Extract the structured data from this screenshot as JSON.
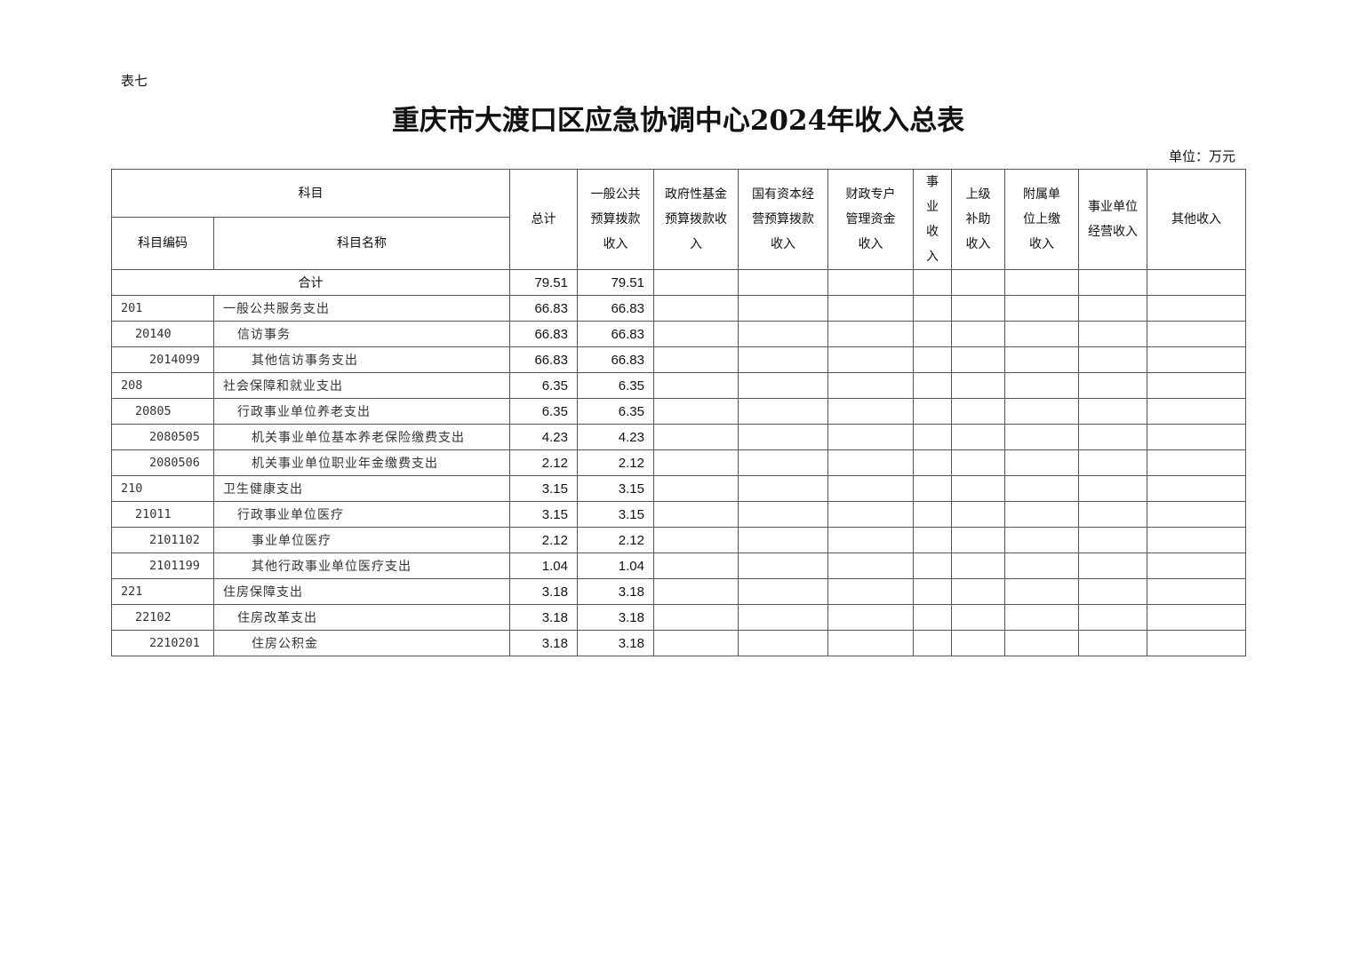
{
  "doc_label": "表七",
  "title": "重庆市大渡口区应急协调中心2024年收入总表",
  "unit": "单位：万元",
  "headers": {
    "subject": "科目",
    "code": "科目编码",
    "name": "科目名称",
    "columns": [
      "总计",
      "一般公共预算拨款收入",
      "政府性基金预算拨款收入",
      "国有资本经营预算拨款收入",
      "财政专户管理资金收入",
      "事业收入",
      "上级补助收入",
      "附属单位上缴收入",
      "事业单位经营收入",
      "其他收入"
    ]
  },
  "total_row": {
    "label": "合计",
    "values": [
      "79.51",
      "79.51",
      "",
      "",
      "",
      "",
      "",
      "",
      "",
      ""
    ]
  },
  "rows": [
    {
      "code": "201",
      "name": "一般公共服务支出",
      "level": 0,
      "values": [
        "66.83",
        "66.83"
      ]
    },
    {
      "code": "20140",
      "name": "信访事务",
      "level": 1,
      "values": [
        "66.83",
        "66.83"
      ]
    },
    {
      "code": "2014099",
      "name": "其他信访事务支出",
      "level": 2,
      "values": [
        "66.83",
        "66.83"
      ]
    },
    {
      "code": "208",
      "name": "社会保障和就业支出",
      "level": 0,
      "values": [
        "6.35",
        "6.35"
      ]
    },
    {
      "code": "20805",
      "name": "行政事业单位养老支出",
      "level": 1,
      "values": [
        "6.35",
        "6.35"
      ]
    },
    {
      "code": "2080505",
      "name": "机关事业单位基本养老保险缴费支出",
      "level": 2,
      "values": [
        "4.23",
        "4.23"
      ]
    },
    {
      "code": "2080506",
      "name": "机关事业单位职业年金缴费支出",
      "level": 2,
      "values": [
        "2.12",
        "2.12"
      ]
    },
    {
      "code": "210",
      "name": "卫生健康支出",
      "level": 0,
      "values": [
        "3.15",
        "3.15"
      ]
    },
    {
      "code": "21011",
      "name": "行政事业单位医疗",
      "level": 1,
      "values": [
        "3.15",
        "3.15"
      ]
    },
    {
      "code": "2101102",
      "name": "事业单位医疗",
      "level": 2,
      "values": [
        "2.12",
        "2.12"
      ]
    },
    {
      "code": "2101199",
      "name": "其他行政事业单位医疗支出",
      "level": 2,
      "values": [
        "1.04",
        "1.04"
      ]
    },
    {
      "code": "221",
      "name": "住房保障支出",
      "level": 0,
      "values": [
        "3.18",
        "3.18"
      ]
    },
    {
      "code": "22102",
      "name": "住房改革支出",
      "level": 1,
      "values": [
        "3.18",
        "3.18"
      ]
    },
    {
      "code": "2210201",
      "name": "住房公积金",
      "level": 2,
      "values": [
        "3.18",
        "3.18"
      ]
    }
  ]
}
